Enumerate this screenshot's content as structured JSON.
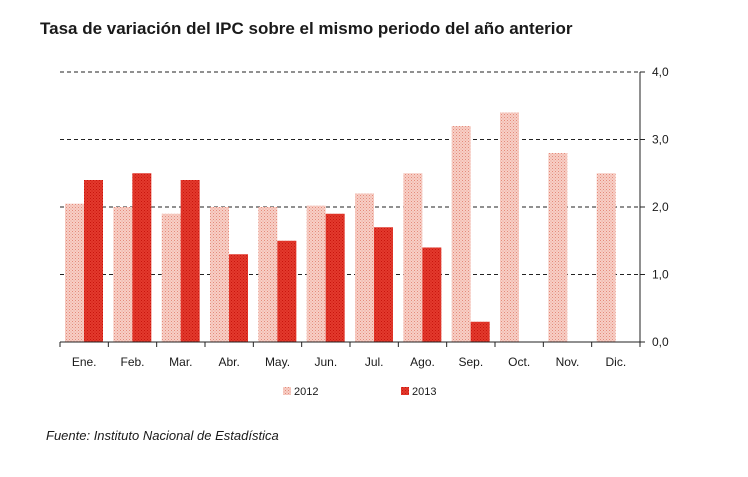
{
  "chart_data": {
    "type": "bar",
    "title": "Tasa de variación del IPC sobre el mismo periodo del año anterior",
    "categories": [
      "Ene.",
      "Feb.",
      "Mar.",
      "Abr.",
      "May.",
      "Jun.",
      "Jul.",
      "Ago.",
      "Sep.",
      "Oct.",
      "Nov.",
      "Dic."
    ],
    "series": [
      {
        "name": "2012",
        "color": "#f2b3a6",
        "pattern": "dotted",
        "values": [
          2.05,
          2.0,
          1.9,
          2.0,
          2.0,
          2.02,
          2.2,
          2.5,
          3.2,
          3.4,
          2.8,
          2.5
        ]
      },
      {
        "name": "2013",
        "color": "#e0281e",
        "pattern": "dotted",
        "values": [
          2.4,
          2.5,
          2.4,
          1.3,
          1.5,
          1.9,
          1.7,
          1.4,
          0.3,
          null,
          null,
          null
        ]
      }
    ],
    "ylim": [
      0,
      4
    ],
    "yticks": [
      "0,0",
      "1,0",
      "2,0",
      "3,0",
      "4,0"
    ],
    "y_axis_position": "right",
    "grid": "dashed-horizontal",
    "legend_position": "bottom",
    "xlabel": "",
    "ylabel": ""
  },
  "source": "Fuente: Instituto Nacional de Estadística"
}
